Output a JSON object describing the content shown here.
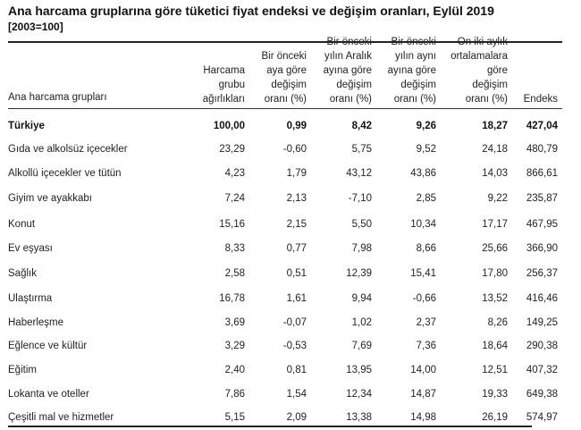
{
  "document": {
    "title": "Ana harcama gruplarına göre tüketici fiyat endeksi ve değişim oranları, Eylül 2019",
    "subtitle": "[2003=100]"
  },
  "table": {
    "headers": [
      {
        "lines": [
          "Ana harcama grupları"
        ]
      },
      {
        "lines": [
          "Harcama",
          "grubu",
          "ağırlıkları"
        ]
      },
      {
        "lines": [
          "Bir önceki",
          "aya göre",
          "değişim",
          "oranı (%)"
        ]
      },
      {
        "lines": [
          "Bir önceki",
          "yılın Aralık",
          "ayına göre",
          "değişim",
          "oranı (%)"
        ]
      },
      {
        "lines": [
          "Bir önceki",
          "yılın aynı",
          "ayına göre",
          "değişim",
          "oranı (%)"
        ]
      },
      {
        "lines": [
          "On iki aylık",
          "ortalamalara",
          "göre",
          "değişim",
          "oranı (%)"
        ]
      },
      {
        "lines": [
          "Endeks"
        ]
      }
    ],
    "rows": [
      {
        "name": "Türkiye",
        "bold": true,
        "values": [
          "100,00",
          "0,99",
          "8,42",
          "9,26",
          "18,27",
          "427,04"
        ]
      },
      {
        "name": "Gıda ve alkolsüz içecekler",
        "values": [
          "23,29",
          "-0,60",
          "5,75",
          "9,52",
          "24,18",
          "480,79"
        ]
      },
      {
        "name": "Alkollü içecekler ve tütün",
        "values": [
          "4,23",
          "1,79",
          "43,12",
          "43,86",
          "14,03",
          "866,61"
        ]
      },
      {
        "name": "Giyim ve ayakkabı",
        "values": [
          "7,24",
          "2,13",
          "-7,10",
          "2,85",
          "9,22",
          "235,87"
        ]
      },
      {
        "name": "Konut",
        "values": [
          "15,16",
          "2,15",
          "5,50",
          "10,34",
          "17,17",
          "467,95"
        ]
      },
      {
        "name": "Ev eşyası",
        "values": [
          "8,33",
          "0,77",
          "7,98",
          "8,66",
          "25,66",
          "366,90"
        ]
      },
      {
        "name": "Sağlık",
        "values": [
          "2,58",
          "0,51",
          "12,39",
          "15,41",
          "17,80",
          "256,37"
        ]
      },
      {
        "name": "Ulaştırma",
        "values": [
          "16,78",
          "1,61",
          "9,94",
          "-0,66",
          "13,52",
          "416,46"
        ]
      },
      {
        "name": "Haberleşme",
        "values": [
          "3,69",
          "-0,07",
          "1,02",
          "2,37",
          "8,26",
          "149,25"
        ]
      },
      {
        "name": "Eğlence ve kültür",
        "values": [
          "3,29",
          "-0,53",
          "7,69",
          "7,36",
          "18,64",
          "290,38"
        ]
      },
      {
        "name": "Eğitim",
        "values": [
          "2,40",
          "0,81",
          "13,95",
          "14,00",
          "12,51",
          "407,32"
        ]
      },
      {
        "name": "Lokanta ve oteller",
        "values": [
          "7,86",
          "1,54",
          "12,34",
          "14,87",
          "19,33",
          "649,38"
        ]
      },
      {
        "name": "Çeşitli mal ve hizmetler",
        "values": [
          "5,15",
          "2,09",
          "13,38",
          "14,98",
          "26,19",
          "574,97"
        ]
      }
    ]
  }
}
